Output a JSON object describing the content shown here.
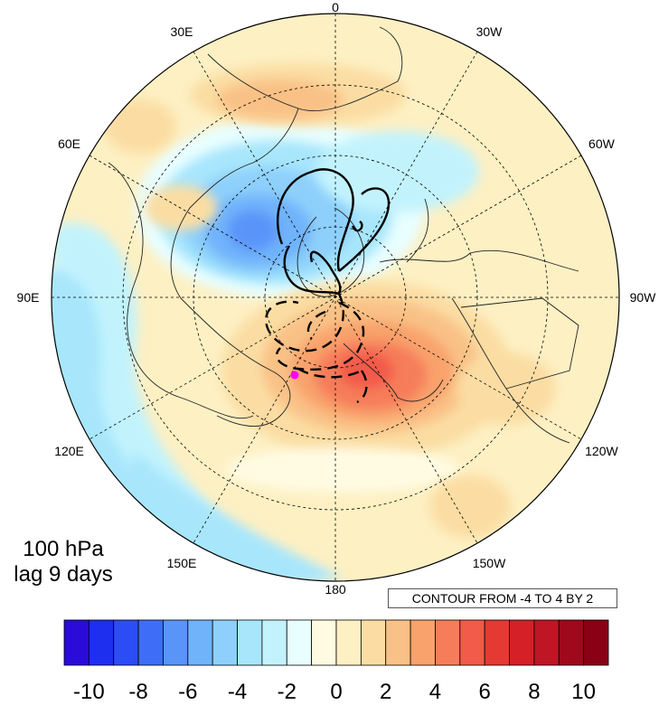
{
  "panel": {
    "level": "100 hPa",
    "lag": "lag 9 days",
    "contour_note": "CONTOUR FROM -4 TO 4 BY 2"
  },
  "longitude_labels": [
    {
      "text": "0",
      "lon": 0
    },
    {
      "text": "30W",
      "lon": -30
    },
    {
      "text": "60W",
      "lon": -60
    },
    {
      "text": "90W",
      "lon": -90
    },
    {
      "text": "120W",
      "lon": -120
    },
    {
      "text": "150W",
      "lon": -150
    },
    {
      "text": "180",
      "lon": 180
    },
    {
      "text": "150E",
      "lon": 150
    },
    {
      "text": "120E",
      "lon": 120
    },
    {
      "text": "90E",
      "lon": 90
    },
    {
      "text": "60E",
      "lon": 60
    },
    {
      "text": "30E",
      "lon": 30
    }
  ],
  "colorbar": {
    "levels": [
      -11,
      -10,
      -9,
      -8,
      -7,
      -6,
      -5,
      -4,
      -3,
      -2,
      -1,
      0,
      1,
      2,
      3,
      4,
      5,
      6,
      7,
      8,
      9,
      10,
      11
    ],
    "colors": [
      "#2a0bd8",
      "#1f2fef",
      "#2c4cf5",
      "#3e6df7",
      "#5a94f9",
      "#70b3fb",
      "#8ed0fb",
      "#a8e6fc",
      "#c2f3fd",
      "#e8feff",
      "#fffbe3",
      "#fdf0c3",
      "#fbdda3",
      "#f9c186",
      "#f9a26c",
      "#f67d5a",
      "#f25a49",
      "#e53a34",
      "#d52028",
      "#be1624",
      "#a0081c",
      "#8a0015"
    ],
    "tick_labels": [
      "-10",
      "-8",
      "-6",
      "-4",
      "-2",
      "0",
      "2",
      "4",
      "6",
      "8",
      "10"
    ],
    "tick_values": [
      -10,
      -8,
      -6,
      -4,
      -2,
      0,
      2,
      4,
      6,
      8,
      10
    ]
  },
  "marker_color": "#ff00ff"
}
